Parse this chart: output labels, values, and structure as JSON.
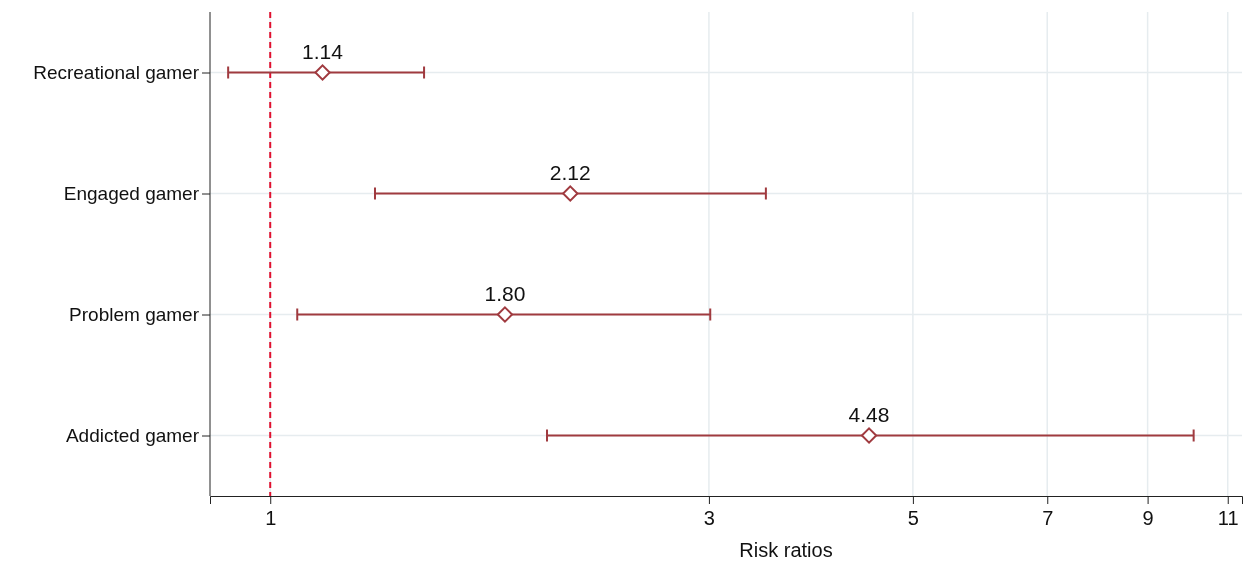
{
  "chart_data": {
    "type": "scatter",
    "orientation": "horizontal",
    "categories": [
      "Recreational gamer",
      "Engaged gamer",
      "Problem gamer",
      "Addicted gamer"
    ],
    "values": [
      1.14,
      2.12,
      1.8,
      4.48
    ],
    "errors": [
      [
        0.9,
        1.47
      ],
      [
        1.3,
        3.46
      ],
      [
        1.07,
        3.01
      ],
      [
        2.0,
        10.1
      ]
    ],
    "value_labels": [
      "1.14",
      "2.12",
      "1.80",
      "4.48"
    ],
    "color": "#a03a3f",
    "marker": "diamond",
    "log": "x",
    "xlabel": "Risk ratios",
    "xlim": [
      0.86,
      11.4
    ],
    "xticks": [
      1,
      3,
      5,
      7,
      9,
      11
    ],
    "grid": true,
    "ref_lines": [
      {
        "axis": "x",
        "value": 1,
        "color": "#e0102f",
        "line_style": "dashed"
      }
    ]
  }
}
